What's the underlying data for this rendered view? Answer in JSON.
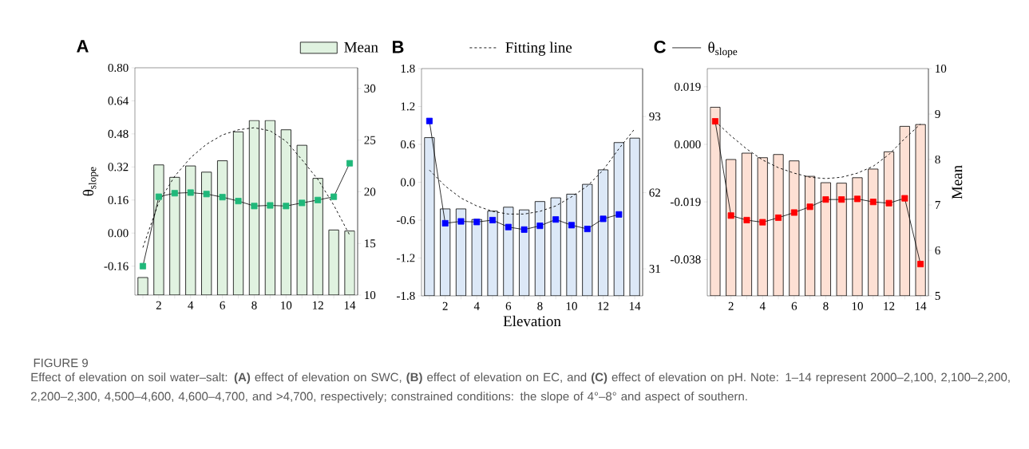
{
  "chart_data": [
    {
      "type": "bar",
      "title": "A",
      "ylabel": "θ$_{slope}$",
      "legend": "top",
      "x": [
        1,
        2,
        3,
        4,
        5,
        6,
        7,
        8,
        9,
        10,
        11,
        12,
        13,
        14
      ],
      "xlim": [
        0.5,
        14.5
      ],
      "xticks": [
        {
          "value": 1,
          "label": null
        },
        2,
        {
          "value": 3,
          "label": null
        },
        4,
        {
          "value": 5,
          "label": null
        },
        6,
        {
          "value": 7,
          "label": null
        },
        8,
        {
          "value": 9,
          "label": null
        },
        10,
        {
          "value": 11,
          "label": null
        },
        12,
        {
          "value": 13,
          "label": null
        },
        14
      ],
      "ylim": [
        -0.3,
        0.8
      ],
      "yticks": [
        {
          "value": -0.16,
          "label": "-0.16"
        },
        {
          "value": 0,
          "label": "0.00"
        },
        0.16,
        0.32,
        0.48,
        0.64,
        {
          "value": 0.8,
          "label": "0.80"
        }
      ],
      "y2lim": [
        10,
        32
      ],
      "y2ticks": [
        10,
        15,
        20,
        25,
        30
      ],
      "series": [
        {
          "name": "Mean",
          "axis": "y2",
          "color": "#e0f2e0",
          "values": [
            11.7,
            22.6,
            21.4,
            22.5,
            21.9,
            23.0,
            25.8,
            26.9,
            26.9,
            26.0,
            24.5,
            21.3,
            16.3,
            16.2
          ]
        },
        {
          "name": "Fitting line",
          "type": "line",
          "axis": "y2",
          "color": "#000000",
          "line_style": "dashed",
          "marker": "none",
          "values": [
            14.6,
            19.0,
            21.5,
            23.3,
            24.6,
            25.5,
            26.0,
            26.2,
            25.9,
            24.9,
            23.1,
            21.2,
            18.7,
            15.8
          ]
        },
        {
          "name": "θ$_{slope}$",
          "type": "line",
          "axis": "y",
          "color": "#1fb87a",
          "line_style": "solid",
          "marker": "square",
          "values": [
            -0.16,
            0.176,
            0.193,
            0.196,
            0.189,
            0.174,
            0.155,
            0.131,
            0.134,
            0.131,
            0.146,
            0.16,
            0.176,
            0.338
          ]
        }
      ],
      "annotations": [
        "FIGURE 9",
        "Effect of elevation on soil water–salt: **(A)** effect of elevation on SWC, **(B)** effect of elevation on EC, and **(C)** effect of elevation on pH. Note: 1–14 represent 2000–2,100, 2,100–2,200, 2,200–2,300, 4,500–4,600, 4,600–4,700, and >4,700, respectively; constrained conditions: the slope of 4°–8° and aspect of southern."
      ]
    },
    {
      "type": "bar",
      "title": "B",
      "xlabel": "Elevation",
      "x": [
        1,
        2,
        3,
        4,
        5,
        6,
        7,
        8,
        9,
        10,
        11,
        12,
        13,
        14
      ],
      "xlim": [
        0.5,
        14.5
      ],
      "xticks": [
        {
          "value": 1,
          "label": null
        },
        2,
        {
          "value": 3,
          "label": null
        },
        4,
        {
          "value": 5,
          "label": null
        },
        6,
        {
          "value": 7,
          "label": null
        },
        8,
        {
          "value": 9,
          "label": null
        },
        10,
        {
          "value": 11,
          "label": null
        },
        12,
        {
          "value": 13,
          "label": null
        },
        14
      ],
      "ylim": [
        -1.8,
        1.8
      ],
      "yticks": [
        -1.8,
        -1.2,
        -0.6,
        {
          "value": 0,
          "label": "0.0"
        },
        0.6,
        1.2,
        1.8
      ],
      "y2lim": [
        20,
        112.5
      ],
      "y2ticks": [
        31,
        62,
        93
      ],
      "series": [
        {
          "axis": "y2",
          "color": "#dce8f7",
          "values": [
            84.4,
            55.4,
            55.4,
            51.1,
            54.5,
            56.1,
            55.0,
            58.4,
            59.9,
            61.4,
            65.4,
            71.3,
            82.4,
            84.2
          ]
        },
        {
          "type": "line",
          "axis": "y2",
          "color": "#000000",
          "line_style": "dashed",
          "marker": "none",
          "values": [
            71.2,
            64.7,
            59.8,
            56.6,
            54.4,
            53.3,
            53.3,
            54.4,
            56.6,
            60.3,
            64.7,
            71.2,
            79.9,
            88.0
          ]
        },
        {
          "type": "line",
          "axis": "y",
          "color": "#0000ff",
          "line_style": "solid",
          "marker": "square",
          "values": [
            0.97,
            -0.65,
            -0.62,
            -0.63,
            -0.6,
            -0.71,
            -0.75,
            -0.69,
            -0.59,
            -0.68,
            -0.74,
            -0.58,
            -0.51,
            null
          ]
        }
      ]
    },
    {
      "type": "bar",
      "title": "C",
      "y2label": "Mean",
      "x": [
        1,
        2,
        3,
        4,
        5,
        6,
        7,
        8,
        9,
        10,
        11,
        12,
        13,
        14
      ],
      "xlim": [
        0.5,
        14.5
      ],
      "xticks": [
        {
          "value": 1,
          "label": null
        },
        2,
        {
          "value": 3,
          "label": null
        },
        4,
        {
          "value": 5,
          "label": null
        },
        6,
        {
          "value": 7,
          "label": null
        },
        8,
        {
          "value": 9,
          "label": null
        },
        10,
        {
          "value": 11,
          "label": null
        },
        12,
        {
          "value": 13,
          "label": null
        },
        14
      ],
      "ylim": [
        -0.05,
        0.025
      ],
      "yticks": [
        -0.038,
        -0.019,
        {
          "value": 0,
          "label": "0.000"
        },
        0.019
      ],
      "y2lim": [
        5,
        10
      ],
      "y2ticks": [
        5,
        6,
        7,
        8,
        9,
        10
      ],
      "series": [
        {
          "axis": "y2",
          "color": "#fde0d4",
          "values": [
            9.15,
            8.0,
            8.14,
            8.04,
            8.11,
            7.97,
            7.63,
            7.49,
            7.48,
            7.6,
            7.79,
            8.17,
            8.73,
            8.77
          ]
        },
        {
          "type": "line",
          "axis": "y2",
          "color": "#000000",
          "line_style": "dashed",
          "marker": "none",
          "values": [
            8.84,
            8.52,
            8.23,
            7.99,
            7.82,
            7.7,
            7.61,
            7.58,
            7.61,
            7.7,
            7.85,
            8.11,
            8.46,
            8.78
          ]
        },
        {
          "type": "line",
          "axis": "y",
          "color": "#ff0000",
          "line_style": "solid",
          "marker": "square",
          "values": [
            0.0076,
            -0.0235,
            -0.025,
            -0.0257,
            -0.0242,
            -0.0225,
            -0.0206,
            -0.0182,
            -0.0182,
            -0.018,
            -0.019,
            -0.0194,
            -0.0178,
            -0.0395
          ]
        }
      ]
    }
  ]
}
